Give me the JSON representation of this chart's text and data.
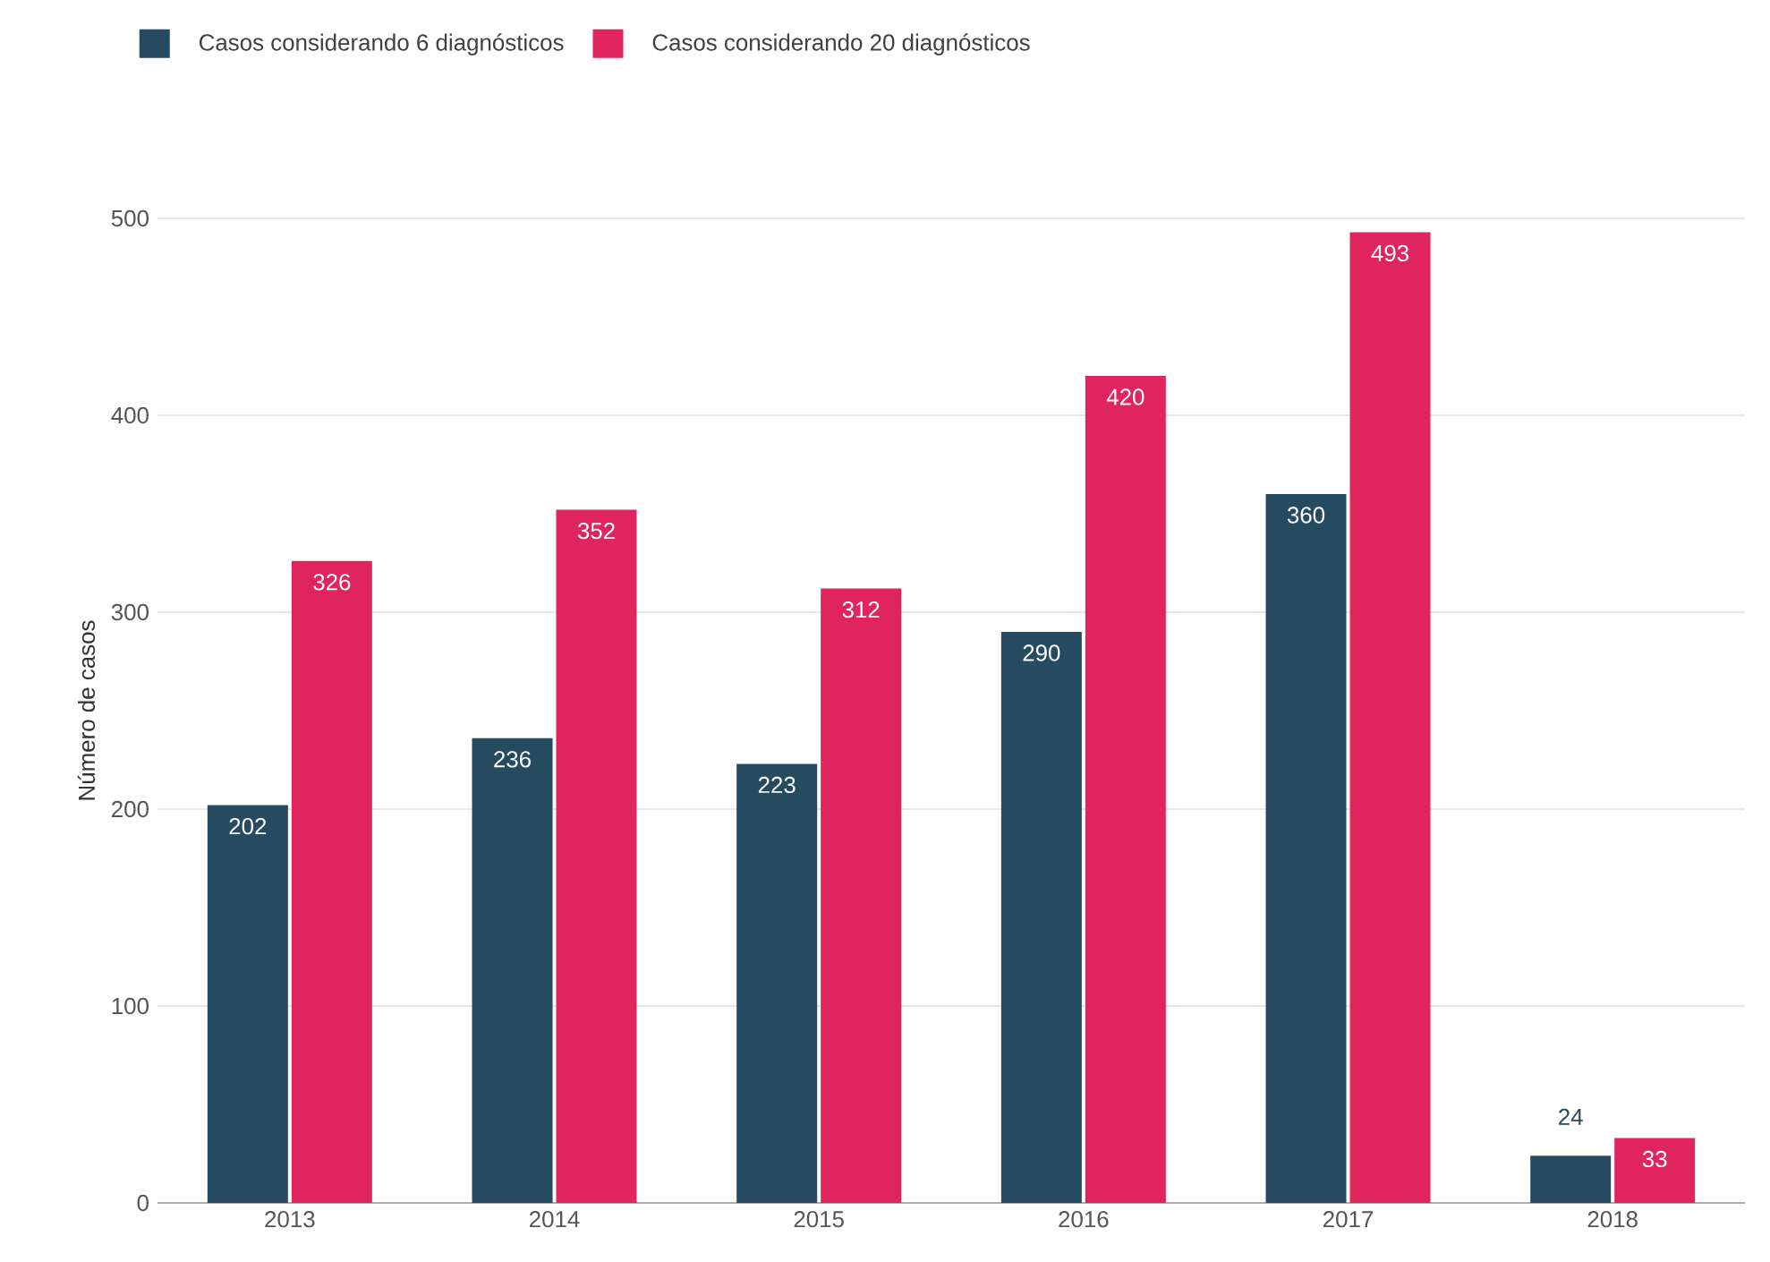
{
  "chart_data": {
    "type": "bar",
    "ylabel": "Número de casos",
    "categories": [
      "2013",
      "2014",
      "2015",
      "2016",
      "2017",
      "2018"
    ],
    "series": [
      {
        "name": "Casos considerando 6 diagnósticos",
        "color": "#264a60",
        "values": [
          202,
          236,
          223,
          290,
          360,
          24
        ]
      },
      {
        "name": "Casos considerando 20 diagnósticos",
        "color": "#e0245e",
        "values": [
          326,
          352,
          312,
          420,
          493,
          33
        ]
      }
    ],
    "ylim": [
      0,
      500
    ],
    "yticks": [
      0,
      100,
      200,
      300,
      400,
      500
    ],
    "grid": "y",
    "legend": "top",
    "data_labels": true
  }
}
